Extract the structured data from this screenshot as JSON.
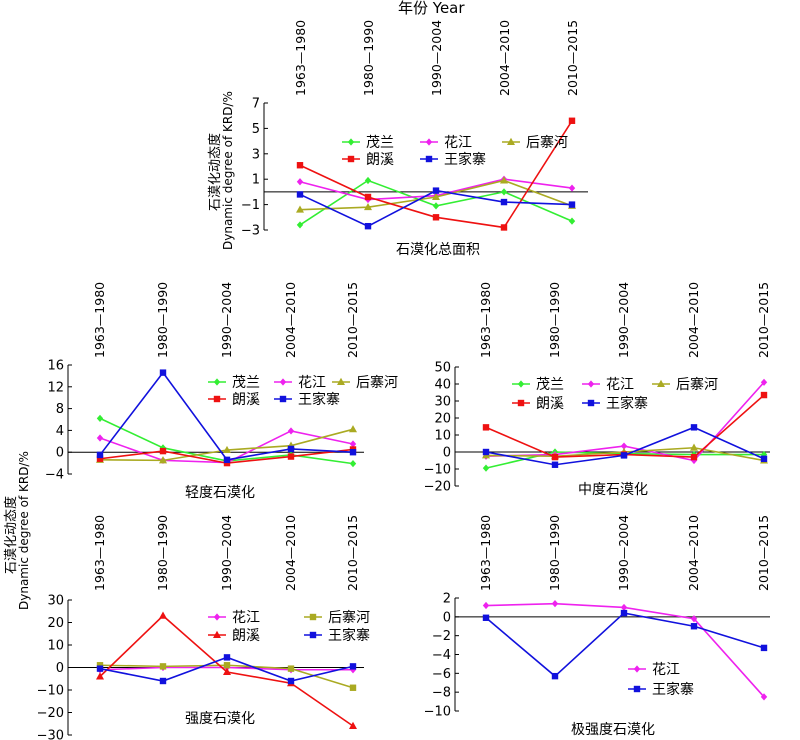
{
  "figure": {
    "top_axis_label": "年份 Year",
    "y_label_cn": "石漠化动态度",
    "y_label_en": "Dynamic degree of KRD/%"
  },
  "chart_data": [
    {
      "type": "line",
      "title": "石漠化总面积",
      "categories": [
        "1963—1980",
        "1980—1990",
        "1990—2004",
        "2004—2010",
        "2010—2015"
      ],
      "ylim": [
        -3,
        7
      ],
      "yticks": [
        -3,
        -1,
        1,
        3,
        5,
        7
      ],
      "legend_placement": "top-center",
      "series": [
        {
          "name": "茂兰",
          "color": "#33ee33",
          "marker": "diamond",
          "values": [
            -2.6,
            0.9,
            -1.1,
            0.0,
            -2.3
          ]
        },
        {
          "name": "花江",
          "color": "#ee22ee",
          "marker": "diamond",
          "values": [
            0.8,
            -0.6,
            -0.3,
            1.0,
            0.3
          ]
        },
        {
          "name": "后寨河",
          "color": "#aaaa22",
          "marker": "triangle",
          "values": [
            -1.4,
            -1.2,
            -0.4,
            0.9,
            -1.1
          ]
        },
        {
          "name": "朗溪",
          "color": "#ee1111",
          "marker": "square",
          "values": [
            2.1,
            -0.4,
            -2.0,
            -2.8,
            5.6
          ]
        },
        {
          "name": "王家寨",
          "color": "#1111dd",
          "marker": "square",
          "values": [
            -0.2,
            -2.7,
            0.1,
            -0.8,
            -1.0
          ]
        }
      ]
    },
    {
      "type": "line",
      "title": "轻度石漠化",
      "categories": [
        "1963—1980",
        "1980—1990",
        "1990—2004",
        "2004—2010",
        "2010—2015"
      ],
      "ylim": [
        -4,
        16
      ],
      "yticks": [
        -4,
        0,
        4,
        8,
        12,
        16
      ],
      "legend_placement": "top-right",
      "series": [
        {
          "name": "茂兰",
          "color": "#33ee33",
          "marker": "diamond",
          "values": [
            6.2,
            0.8,
            -1.6,
            -0.5,
            -2.1
          ]
        },
        {
          "name": "花江",
          "color": "#ee22ee",
          "marker": "diamond",
          "values": [
            2.6,
            -1.5,
            -1.9,
            3.9,
            1.5
          ]
        },
        {
          "name": "后寨河",
          "color": "#aaaa22",
          "marker": "triangle",
          "values": [
            -1.4,
            -1.5,
            0.4,
            1.2,
            4.2
          ]
        },
        {
          "name": "朗溪",
          "color": "#ee1111",
          "marker": "square",
          "values": [
            -1.2,
            0.2,
            -2.0,
            -0.8,
            0.5
          ]
        },
        {
          "name": "王家寨",
          "color": "#1111dd",
          "marker": "square",
          "values": [
            -0.5,
            14.6,
            -1.4,
            0.6,
            0.0
          ]
        }
      ]
    },
    {
      "type": "line",
      "title": "中度石漠化",
      "categories": [
        "1963—1980",
        "1980—1990",
        "1990—2004",
        "2004—2010",
        "2010—2015"
      ],
      "ylim": [
        -20,
        50
      ],
      "yticks": [
        -20,
        -10,
        0,
        10,
        20,
        30,
        40,
        50
      ],
      "legend_placement": "top-right",
      "series": [
        {
          "name": "茂兰",
          "color": "#33ee33",
          "marker": "diamond",
          "values": [
            -9.5,
            0.0,
            -1.0,
            -1.5,
            -1.5
          ]
        },
        {
          "name": "花江",
          "color": "#ee22ee",
          "marker": "diamond",
          "values": [
            -2.5,
            -1.5,
            3.5,
            -5.0,
            41.0
          ]
        },
        {
          "name": "后寨河",
          "color": "#aaaa22",
          "marker": "triangle",
          "values": [
            -2.0,
            -2.5,
            0.0,
            2.5,
            -5.0
          ]
        },
        {
          "name": "朗溪",
          "color": "#ee1111",
          "marker": "square",
          "values": [
            14.5,
            -3.0,
            -1.5,
            -3.0,
            33.5
          ]
        },
        {
          "name": "王家寨",
          "color": "#1111dd",
          "marker": "square",
          "values": [
            0.0,
            -7.5,
            -2.0,
            14.5,
            -4.0
          ]
        }
      ]
    },
    {
      "type": "line",
      "title": "强度石漠化",
      "categories": [
        "1963—1980",
        "1980—1990",
        "1990—2004",
        "2004—2010",
        "2010—2015"
      ],
      "ylim": [
        -30,
        30
      ],
      "yticks": [
        -30,
        -20,
        -10,
        0,
        10,
        20,
        30
      ],
      "legend_placement": "top-right",
      "series": [
        {
          "name": "花江",
          "color": "#ee22ee",
          "marker": "diamond",
          "values": [
            -1.0,
            0.0,
            0.0,
            -1.0,
            -1.0
          ]
        },
        {
          "name": "后寨河",
          "color": "#aaaa22",
          "marker": "square",
          "values": [
            1.0,
            0.5,
            1.0,
            -0.5,
            -9.0
          ]
        },
        {
          "name": "朗溪",
          "color": "#ee1111",
          "marker": "triangle",
          "values": [
            -4.0,
            23.0,
            -2.0,
            -7.0,
            -26.0
          ]
        },
        {
          "name": "王家寨",
          "color": "#1111dd",
          "marker": "square",
          "values": [
            -0.5,
            -6.0,
            4.5,
            -6.0,
            0.5
          ]
        }
      ]
    },
    {
      "type": "line",
      "title": "极强度石漠化",
      "categories": [
        "1963—1980",
        "1980—1990",
        "1990—2004",
        "2004—2010",
        "2010—2015"
      ],
      "ylim": [
        -10,
        2
      ],
      "yticks": [
        -10,
        -8,
        -6,
        -4,
        -2,
        0,
        2
      ],
      "legend_placement": "bottom-right",
      "series": [
        {
          "name": "花江",
          "color": "#ee22ee",
          "marker": "diamond",
          "values": [
            1.2,
            1.4,
            1.0,
            -0.2,
            -8.5
          ]
        },
        {
          "name": "王家寨",
          "color": "#1111dd",
          "marker": "square",
          "values": [
            -0.1,
            -6.3,
            0.4,
            -1.0,
            -3.3
          ]
        }
      ]
    }
  ]
}
